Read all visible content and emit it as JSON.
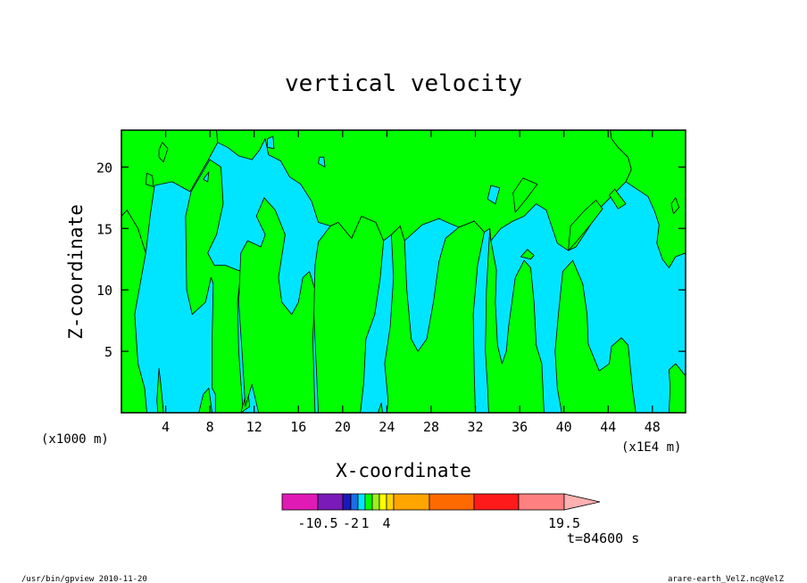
{
  "chart_data": {
    "type": "heatmap",
    "title": "vertical velocity",
    "xlabel": "X-coordinate",
    "ylabel": "Z-coordinate",
    "x_units_left": "(x1000 m)",
    "x_units_right": "(x1E4 m)",
    "xlim": [
      0,
      51
    ],
    "ylim": [
      0,
      23
    ],
    "x_ticks": [
      4,
      8,
      12,
      16,
      20,
      24,
      28,
      32,
      36,
      40,
      44,
      48
    ],
    "y_ticks": [
      5,
      10,
      15,
      20
    ],
    "grid": false,
    "time_label": "t=84600 s",
    "colors": {
      "positive": "#00ff00",
      "negative": "#00e5ff",
      "contour": "#000000"
    },
    "positive_regions": [
      [
        [
          0,
          0
        ],
        [
          2.3,
          0
        ],
        [
          2.1,
          2
        ],
        [
          1.5,
          4
        ],
        [
          1.2,
          8
        ],
        [
          1.8,
          11
        ],
        [
          2.2,
          13
        ],
        [
          1.5,
          15
        ],
        [
          0.5,
          16.5
        ],
        [
          0,
          16
        ]
      ],
      [
        [
          3.3,
          0
        ],
        [
          3.8,
          0
        ],
        [
          3.6,
          2
        ],
        [
          3.4,
          3.6
        ],
        [
          3.2,
          1
        ]
      ],
      [
        [
          7,
          0
        ],
        [
          8.2,
          0
        ],
        [
          7.9,
          2
        ],
        [
          7.4,
          1.5
        ]
      ],
      [
        [
          8.5,
          0
        ],
        [
          11,
          0
        ],
        [
          10.6,
          5
        ],
        [
          10.5,
          9
        ],
        [
          10.8,
          11.5
        ],
        [
          9.4,
          12
        ],
        [
          8.4,
          12
        ],
        [
          7.8,
          13
        ],
        [
          8.6,
          14.5
        ],
        [
          9.2,
          17
        ],
        [
          9,
          20
        ],
        [
          8,
          20.6
        ],
        [
          6.3,
          18
        ],
        [
          5.8,
          16
        ],
        [
          5.9,
          10
        ],
        [
          6.4,
          8
        ],
        [
          7.6,
          9
        ],
        [
          8.1,
          11
        ],
        [
          8.3,
          10.5
        ],
        [
          8.2,
          6
        ],
        [
          8.2,
          2
        ],
        [
          8.5,
          1.5
        ]
      ],
      [
        [
          10.8,
          0
        ],
        [
          11.4,
          2
        ],
        [
          11.6,
          0.5
        ]
      ],
      [
        [
          12.4,
          0
        ],
        [
          17.5,
          0
        ],
        [
          17.3,
          6
        ],
        [
          17.5,
          10
        ],
        [
          17,
          11.5
        ],
        [
          16.4,
          11
        ],
        [
          16,
          9
        ],
        [
          15.4,
          8
        ],
        [
          14.5,
          9
        ],
        [
          14.2,
          11
        ],
        [
          14.8,
          14.5
        ],
        [
          13.9,
          16.5
        ],
        [
          12.9,
          17.5
        ],
        [
          12.2,
          16
        ],
        [
          13,
          14.5
        ],
        [
          12.6,
          13.5
        ],
        [
          11.4,
          14
        ],
        [
          10.8,
          13
        ],
        [
          10.6,
          9
        ],
        [
          10.9,
          5
        ],
        [
          11.2,
          0.5
        ],
        [
          11.8,
          2.3
        ]
      ],
      [
        [
          17.8,
          0
        ],
        [
          21.6,
          0
        ],
        [
          21.9,
          2.4
        ],
        [
          22.1,
          6
        ],
        [
          22.9,
          8
        ],
        [
          23.4,
          11
        ],
        [
          23.7,
          14
        ],
        [
          23,
          15.5
        ],
        [
          21.7,
          16
        ],
        [
          20.8,
          14.2
        ],
        [
          19.6,
          15.5
        ],
        [
          18.9,
          15.2
        ],
        [
          17.8,
          13.9
        ],
        [
          17.5,
          12
        ],
        [
          17.4,
          8
        ],
        [
          17.6,
          4
        ]
      ],
      [
        [
          23.2,
          0
        ],
        [
          23.6,
          0
        ],
        [
          23.5,
          0.8
        ]
      ],
      [
        [
          24,
          0
        ],
        [
          32,
          0
        ],
        [
          31.9,
          3
        ],
        [
          31.8,
          8
        ],
        [
          32.2,
          12
        ],
        [
          32.8,
          14.7
        ],
        [
          31.9,
          15.6
        ],
        [
          30.5,
          15.1
        ],
        [
          29.3,
          14.2
        ],
        [
          28.7,
          12.3
        ],
        [
          28.2,
          9
        ],
        [
          27.6,
          6
        ],
        [
          26.8,
          5
        ],
        [
          26.2,
          6
        ],
        [
          25.8,
          10
        ],
        [
          25.6,
          14
        ],
        [
          25.2,
          15.2
        ],
        [
          24.4,
          14.5
        ],
        [
          24.6,
          11
        ],
        [
          24.3,
          7
        ],
        [
          23.8,
          4
        ],
        [
          24.1,
          1
        ]
      ],
      [
        [
          33.2,
          0
        ],
        [
          38.2,
          0
        ],
        [
          38,
          4
        ],
        [
          37.5,
          5.5
        ],
        [
          37.3,
          9
        ],
        [
          37,
          11.8
        ],
        [
          36.4,
          12.4
        ],
        [
          35.6,
          11
        ],
        [
          35,
          7
        ],
        [
          34.8,
          5
        ],
        [
          34.4,
          4
        ],
        [
          34,
          5.5
        ],
        [
          33.8,
          9
        ],
        [
          33.9,
          11.6
        ],
        [
          33.4,
          14
        ],
        [
          33.3,
          15
        ],
        [
          33,
          10
        ],
        [
          32.9,
          5
        ],
        [
          33.1,
          2
        ]
      ],
      [
        [
          39.8,
          0
        ],
        [
          46.5,
          0
        ],
        [
          46.2,
          2
        ],
        [
          45.8,
          5.5
        ],
        [
          45.2,
          6.1
        ],
        [
          44.3,
          5.4
        ],
        [
          44.1,
          4
        ],
        [
          43.2,
          3.4
        ],
        [
          42.2,
          5.6
        ],
        [
          42.1,
          8
        ],
        [
          41.7,
          10.5
        ],
        [
          40.8,
          12.4
        ],
        [
          39.9,
          11.5
        ],
        [
          39.5,
          8
        ],
        [
          39.2,
          5
        ],
        [
          39.4,
          2
        ]
      ],
      [
        [
          49.5,
          0
        ],
        [
          51,
          0
        ],
        [
          51,
          3
        ],
        [
          50.1,
          4
        ],
        [
          49.5,
          3.5
        ],
        [
          49.6,
          2
        ]
      ],
      [
        [
          0,
          16
        ],
        [
          0.5,
          16.5
        ],
        [
          1.5,
          15
        ],
        [
          2.2,
          13
        ],
        [
          2.6,
          16
        ],
        [
          3,
          18.5
        ],
        [
          4.6,
          18.8
        ],
        [
          6.2,
          18
        ],
        [
          7.8,
          20.5
        ],
        [
          8.7,
          22
        ],
        [
          8.6,
          23
        ],
        [
          0,
          23
        ]
      ],
      [
        [
          8.6,
          23
        ],
        [
          8.7,
          22
        ],
        [
          9.6,
          21.6
        ],
        [
          10.6,
          20.9
        ],
        [
          11.8,
          20.6
        ],
        [
          12.5,
          21.4
        ],
        [
          13,
          22.3
        ],
        [
          13.3,
          21
        ],
        [
          14.4,
          20.5
        ],
        [
          15.2,
          19.2
        ],
        [
          16.2,
          18.6
        ],
        [
          17.2,
          17.2
        ],
        [
          17.8,
          15.5
        ],
        [
          18.9,
          15.2
        ],
        [
          19.6,
          15.5
        ],
        [
          20.8,
          14.2
        ],
        [
          21.7,
          16
        ],
        [
          23,
          15.5
        ],
        [
          23.7,
          14
        ],
        [
          24.4,
          14.5
        ],
        [
          25.2,
          15.2
        ],
        [
          25.6,
          14
        ],
        [
          27.2,
          15.3
        ],
        [
          28.7,
          15.8
        ],
        [
          29.7,
          15.4
        ],
        [
          30.5,
          15.1
        ],
        [
          31.9,
          15.6
        ],
        [
          32.8,
          14.7
        ],
        [
          33.3,
          15
        ],
        [
          33.4,
          14
        ],
        [
          34.3,
          15
        ],
        [
          35.4,
          15.6
        ],
        [
          36.4,
          16
        ],
        [
          37.5,
          17
        ],
        [
          38.4,
          16.5
        ],
        [
          39.4,
          13.8
        ],
        [
          40.4,
          13.2
        ],
        [
          41.1,
          13.5
        ],
        [
          42.2,
          15
        ],
        [
          43.3,
          16.7
        ],
        [
          44.5,
          17.8
        ],
        [
          45.6,
          18.8
        ],
        [
          46.1,
          19.8
        ],
        [
          45.8,
          20.8
        ],
        [
          44.9,
          21.6
        ],
        [
          44.3,
          22.3
        ],
        [
          44.2,
          23
        ]
      ],
      [
        [
          44.2,
          23
        ],
        [
          44.3,
          22.3
        ],
        [
          44.9,
          21.6
        ],
        [
          45.8,
          20.8
        ],
        [
          46.1,
          19.8
        ],
        [
          45.6,
          18.8
        ],
        [
          47.6,
          17.6
        ],
        [
          48.2,
          16.4
        ],
        [
          48.6,
          15.3
        ],
        [
          48.4,
          13.8
        ],
        [
          48.9,
          12.5
        ],
        [
          49.5,
          11.8
        ],
        [
          50.1,
          12.7
        ],
        [
          51,
          13
        ],
        [
          51,
          23
        ]
      ],
      [
        [
          40.4,
          13.2
        ],
        [
          41.2,
          14
        ],
        [
          42.4,
          15.3
        ],
        [
          43.5,
          16.6
        ],
        [
          42.9,
          17.3
        ],
        [
          41.8,
          16.4
        ],
        [
          40.6,
          15.2
        ]
      ],
      [
        [
          35.6,
          16.3
        ],
        [
          36.6,
          17.4
        ],
        [
          37.6,
          18.6
        ],
        [
          36.3,
          19.1
        ],
        [
          35.4,
          17.9
        ]
      ],
      [
        [
          44.9,
          16.6
        ],
        [
          45.6,
          17
        ],
        [
          44.6,
          18.2
        ],
        [
          44.1,
          17.7
        ]
      ],
      [
        [
          49.9,
          16.2
        ],
        [
          50.4,
          16.7
        ],
        [
          50.1,
          17.5
        ],
        [
          49.7,
          17
        ]
      ],
      [
        [
          36.1,
          12.7
        ],
        [
          37,
          12.5
        ],
        [
          37.3,
          12.8
        ],
        [
          36.7,
          13.3
        ]
      ],
      [
        [
          2.2,
          18.6
        ],
        [
          2.9,
          18.4
        ],
        [
          2.8,
          19.3
        ],
        [
          2.3,
          19.5
        ]
      ],
      [
        [
          3.4,
          20.8
        ],
        [
          3.8,
          20.4
        ],
        [
          4.2,
          21.5
        ],
        [
          3.7,
          22
        ],
        [
          3.4,
          21.4
        ]
      ]
    ],
    "negative_regions": [
      [
        [
          33.1,
          17.4
        ],
        [
          33.8,
          17
        ],
        [
          34.2,
          18.3
        ],
        [
          33.4,
          18.5
        ]
      ],
      [
        [
          13.2,
          21.6
        ],
        [
          13.8,
          21.5
        ],
        [
          13.7,
          22.5
        ],
        [
          13.2,
          22.3
        ]
      ],
      [
        [
          7.4,
          19
        ],
        [
          7.8,
          18.8
        ],
        [
          7.9,
          19.6
        ]
      ],
      [
        [
          17.8,
          20.3
        ],
        [
          18.4,
          20
        ],
        [
          18.3,
          20.8
        ],
        [
          17.9,
          20.8
        ]
      ]
    ],
    "colorbar": {
      "levels": [
        -10.5,
        -2,
        1,
        4,
        19.5
      ],
      "labels": [
        "-10.5",
        "-2",
        "1",
        "4",
        "19.5"
      ],
      "colors": [
        "#e01ab4",
        "#7a1ab8",
        "#1a1ab8",
        "#1a6ee6",
        "#00e5ff",
        "#00ff00",
        "#9cf01a",
        "#ffff00",
        "#ffd700",
        "#ffa500",
        "#ff6a00",
        "#ff1a1a",
        "#ff8080",
        "#ffb0b0"
      ]
    }
  },
  "footer": {
    "left": "/usr/bin/gpview  2010-11-20",
    "right": "arare-earth_VelZ.nc@VelZ"
  }
}
